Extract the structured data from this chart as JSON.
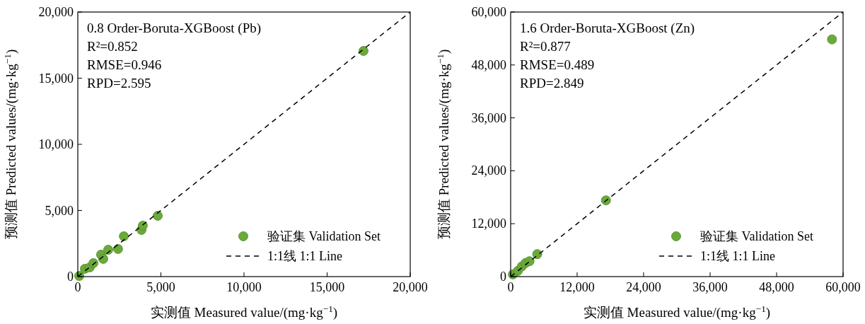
{
  "chart_data": [
    {
      "type": "scatter",
      "xlabel": "实测值 Measured value/(mg·kg$^{−1}$)",
      "ylabel": "预测值 Predicted values/(mg·kg$^{−1}$)",
      "annotations": [
        "0.8 Order-Boruta-XGBoost (Pb)",
        "R²=0.852",
        "RMSE=0.946",
        "RPD=2.595"
      ],
      "xlim": [
        0,
        20000
      ],
      "ylim": [
        0,
        20000
      ],
      "xticks": [
        0,
        {
          "value": 5000,
          "label": "5,000"
        },
        {
          "value": 10000,
          "label": "10,000"
        },
        {
          "value": 15000,
          "label": "15,000"
        },
        {
          "value": 20000,
          "label": "20,000"
        }
      ],
      "yticks": [
        0,
        {
          "value": 5000,
          "label": "5,000"
        },
        {
          "value": 10000,
          "label": "10,000"
        },
        {
          "value": 15000,
          "label": "15,000"
        },
        {
          "value": 20000,
          "label": "20,000"
        }
      ],
      "grid": false,
      "legend": "bottom right",
      "series": [
        {
          "name": "验证集 Validation Set",
          "color": "#6aaa3a",
          "marker": "circle",
          "x": [
            85,
            425,
            720,
            940,
            1400,
            1530,
            1830,
            2420,
            2770,
            3830,
            3910,
            4810,
            17190
          ],
          "values": [
            50,
            590,
            700,
            1020,
            1660,
            1340,
            2030,
            2090,
            3050,
            3530,
            3850,
            4600,
            17060
          ]
        },
        {
          "name": "1:1线  1:1 Line",
          "type": "line",
          "color": "#000000",
          "line_style": "dashed",
          "x": [
            0,
            20000
          ],
          "values": [
            0,
            20000
          ]
        }
      ]
    },
    {
      "type": "scatter",
      "xlabel": "实测值 Measured value/(mg·kg$^{−1}$)",
      "ylabel": "预测值 Predicted values/(mg·kg$^{−1}$)",
      "annotations": [
        "1.6 Order-Boruta-XGBoost (Zn)",
        "R²=0.877",
        "RMSE=0.489",
        "RPD=2.849"
      ],
      "xlim": [
        0,
        60000
      ],
      "ylim": [
        0,
        60000
      ],
      "xticks": [
        0,
        {
          "value": 12000,
          "label": "12,000"
        },
        {
          "value": 24000,
          "label": "24,000"
        },
        {
          "value": 36000,
          "label": "36,000"
        },
        {
          "value": 48000,
          "label": "48,000"
        },
        {
          "value": 60000,
          "label": "60,000"
        }
      ],
      "yticks": [
        0,
        {
          "value": 12000,
          "label": "12,000"
        },
        {
          "value": 24000,
          "label": "24,000"
        },
        {
          "value": 36000,
          "label": "36,000"
        },
        {
          "value": 48000,
          "label": "48,000"
        },
        {
          "value": 60000,
          "label": "60,000"
        }
      ],
      "grid": false,
      "legend": "bottom right",
      "series": [
        {
          "name": "验证集 Validation Set",
          "color": "#6aaa3a",
          "marker": "circle",
          "x": [
            400,
            1300,
            2000,
            2700,
            3400,
            4800,
            17200,
            58000
          ],
          "values": [
            500,
            1300,
            2300,
            3100,
            3500,
            5100,
            17300,
            53800
          ]
        },
        {
          "name": "1:1线  1:1 Line",
          "type": "line",
          "color": "#000000",
          "line_style": "dashed",
          "x": [
            0,
            60000
          ],
          "values": [
            0,
            60000
          ]
        }
      ]
    }
  ]
}
